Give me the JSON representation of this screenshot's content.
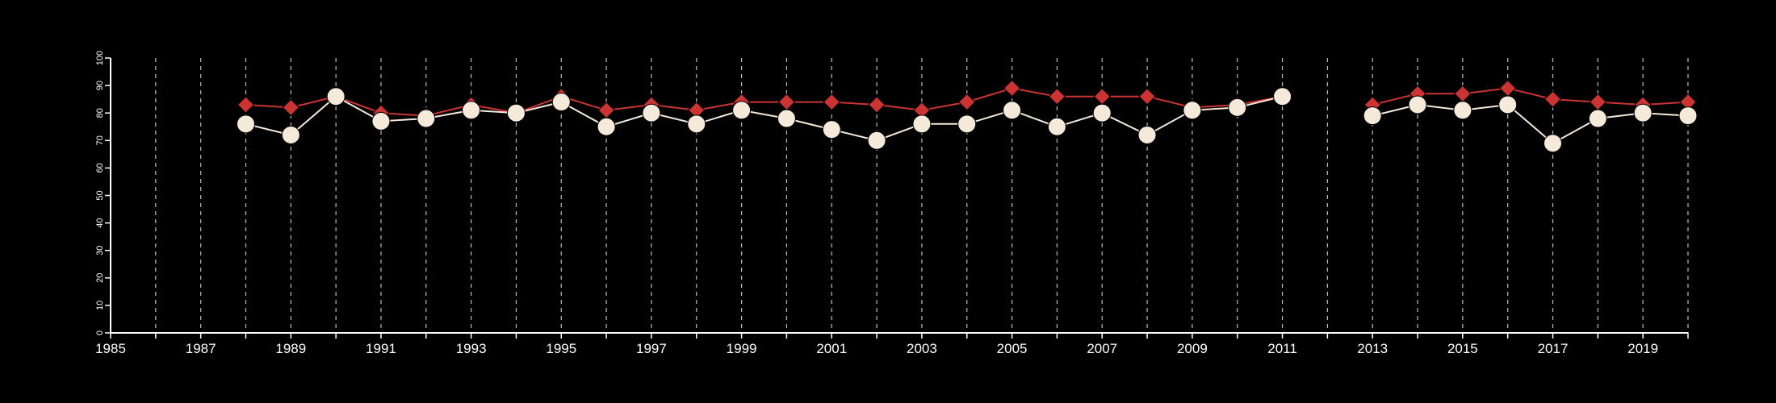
{
  "chart_data": {
    "type": "line",
    "title": "",
    "xlabel": "",
    "ylabel": "",
    "xlim": [
      1985,
      2020
    ],
    "ylim": [
      0,
      100
    ],
    "x_ticks": [
      1985,
      1987,
      1989,
      1991,
      1993,
      1995,
      1997,
      1999,
      2001,
      2003,
      2005,
      2007,
      2009,
      2011,
      2013,
      2015,
      2017,
      2019
    ],
    "y_ticks": [
      0,
      10,
      20,
      30,
      40,
      50,
      60,
      70,
      80,
      90,
      100
    ],
    "x_gridlines": "every year, dashed",
    "legend": "none",
    "series": [
      {
        "color": "#cc3333",
        "marker": "diamond",
        "points": [
          [
            1988,
            83
          ],
          [
            1989,
            82
          ],
          [
            1990,
            86
          ],
          [
            1991,
            80
          ],
          [
            1992,
            79
          ],
          [
            1993,
            83
          ],
          [
            1994,
            80
          ],
          [
            1995,
            86
          ],
          [
            1996,
            81
          ],
          [
            1997,
            83
          ],
          [
            1998,
            81
          ],
          [
            1999,
            84
          ],
          [
            2000,
            84
          ],
          [
            2001,
            84
          ],
          [
            2002,
            83
          ],
          [
            2003,
            81
          ],
          [
            2004,
            84
          ],
          [
            2005,
            89
          ],
          [
            2006,
            86
          ],
          [
            2007,
            86
          ],
          [
            2008,
            86
          ],
          [
            2009,
            82
          ],
          [
            2010,
            83
          ],
          [
            2011,
            86
          ],
          null,
          [
            2013,
            83
          ],
          [
            2014,
            87
          ],
          [
            2015,
            87
          ],
          [
            2016,
            89
          ],
          [
            2017,
            85
          ],
          [
            2018,
            84
          ],
          [
            2019,
            83
          ],
          [
            2020,
            84
          ]
        ]
      },
      {
        "color": "#f5e9da",
        "marker": "circle",
        "points": [
          [
            1988,
            76
          ],
          [
            1989,
            72
          ],
          [
            1990,
            86
          ],
          [
            1991,
            77
          ],
          [
            1992,
            78
          ],
          [
            1993,
            81
          ],
          [
            1994,
            80
          ],
          [
            1995,
            84
          ],
          [
            1996,
            75
          ],
          [
            1997,
            80
          ],
          [
            1998,
            76
          ],
          [
            1999,
            81
          ],
          [
            2000,
            78
          ],
          [
            2001,
            74
          ],
          [
            2002,
            70
          ],
          [
            2003,
            76
          ],
          [
            2004,
            76
          ],
          [
            2005,
            81
          ],
          [
            2006,
            75
          ],
          [
            2007,
            80
          ],
          [
            2008,
            72
          ],
          [
            2009,
            81
          ],
          [
            2010,
            82
          ],
          [
            2011,
            86
          ],
          null,
          [
            2013,
            79
          ],
          [
            2014,
            83
          ],
          [
            2015,
            81
          ],
          [
            2016,
            83
          ],
          [
            2017,
            69
          ],
          [
            2018,
            78
          ],
          [
            2019,
            80
          ],
          [
            2020,
            79
          ]
        ]
      }
    ]
  }
}
